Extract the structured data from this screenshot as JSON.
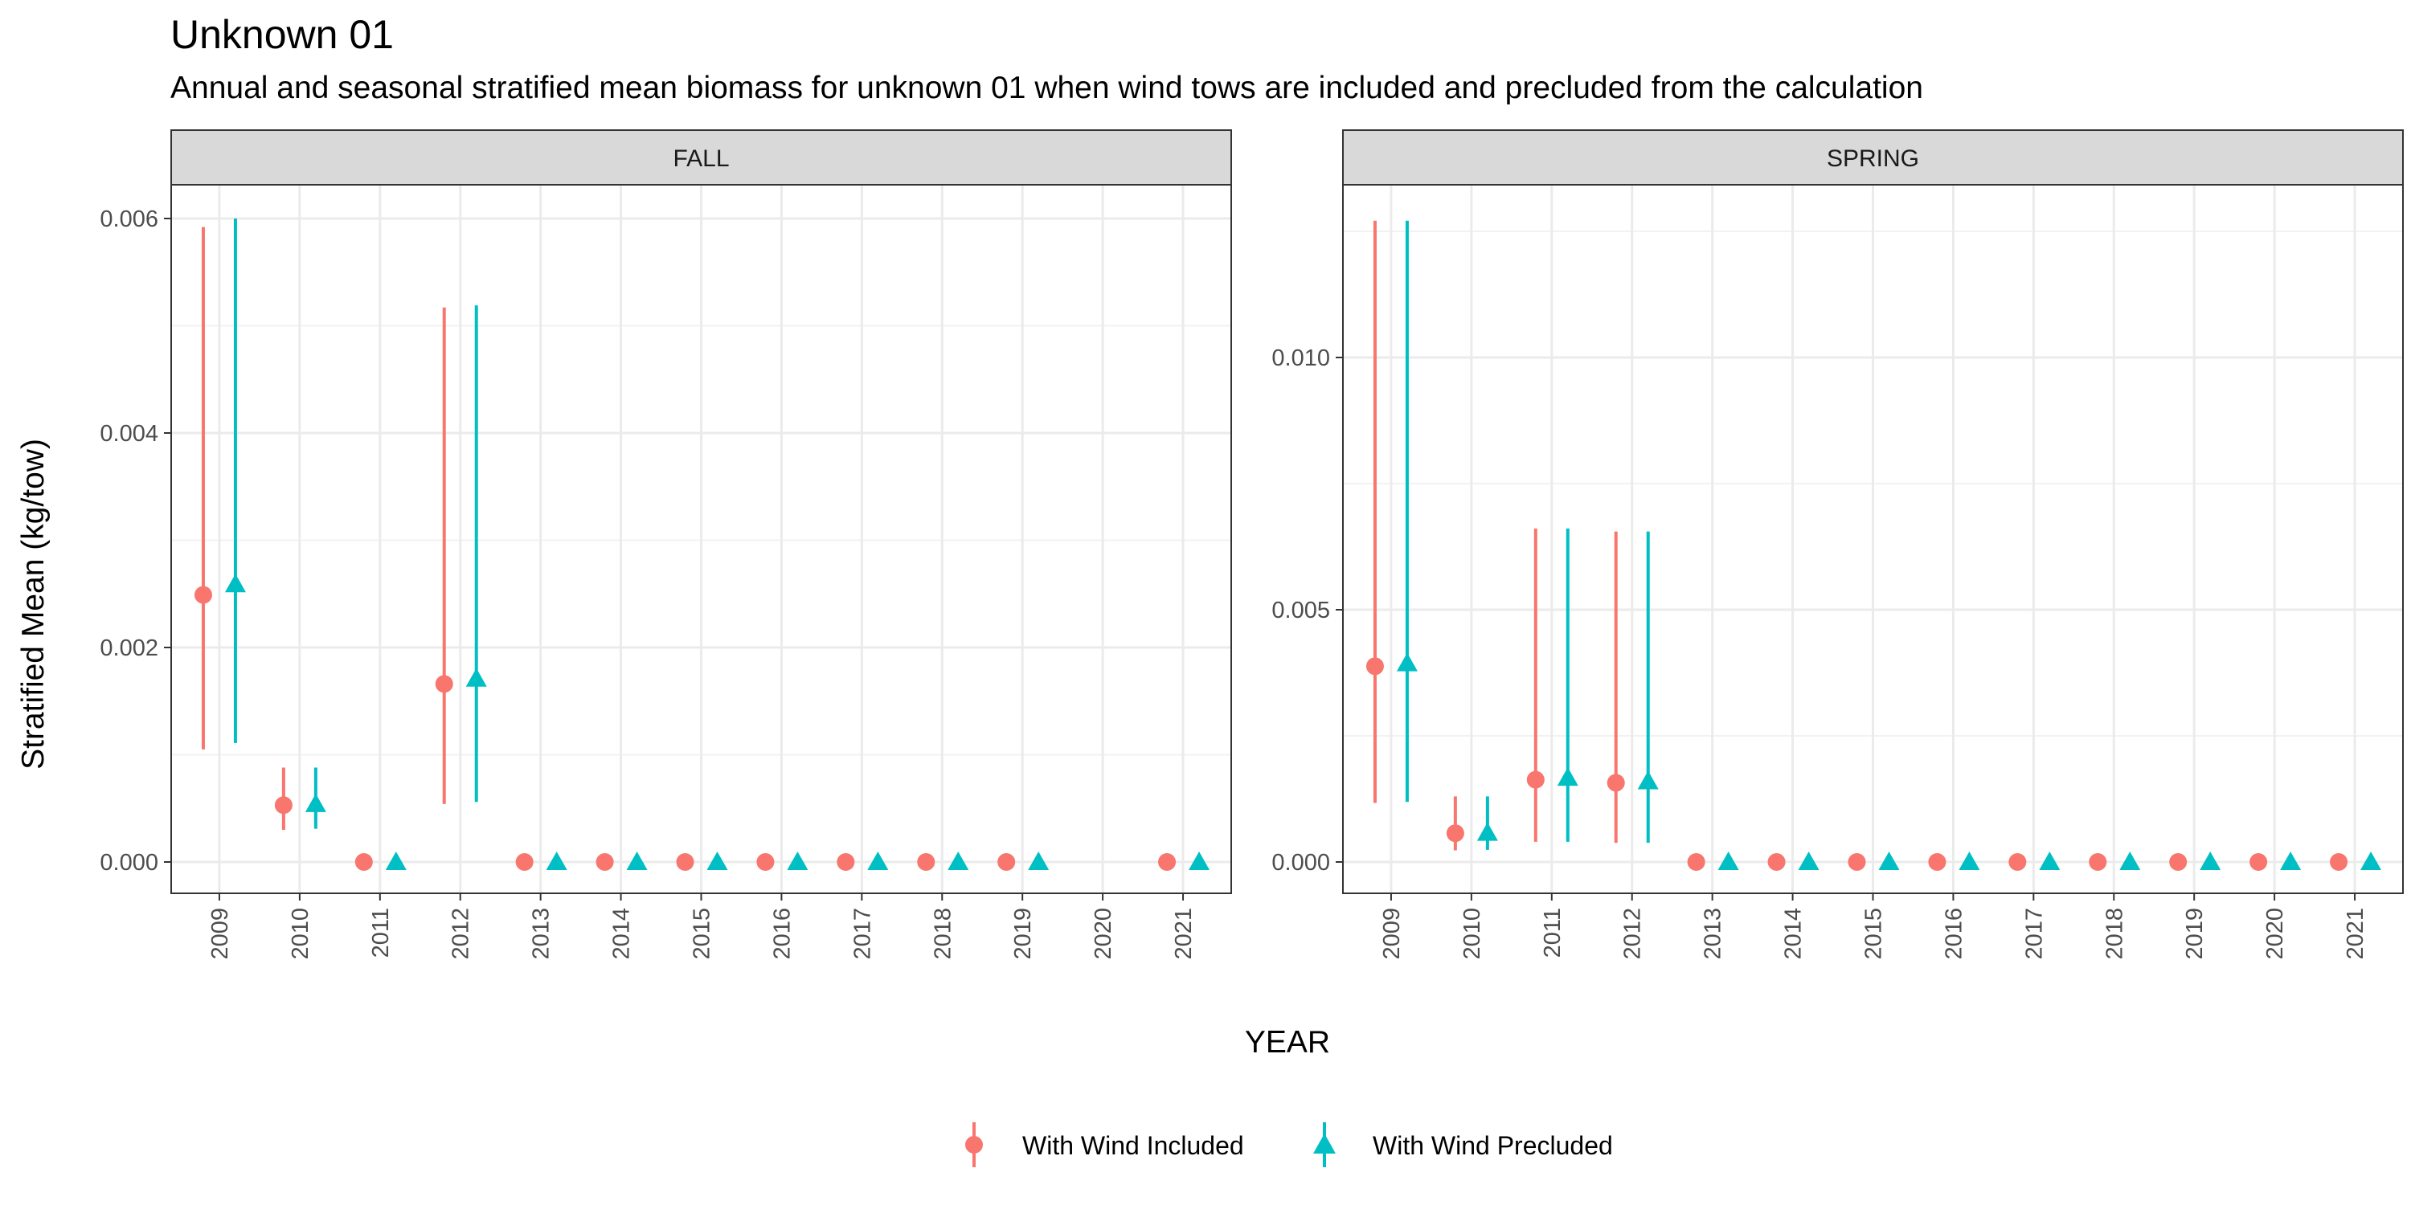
{
  "title": "Unknown 01",
  "subtitle": "Annual and seasonal stratified mean biomass for unknown 01 when wind tows are included and precluded from the calculation",
  "chart_data": {
    "type": "scatter",
    "xlabel": "YEAR",
    "ylabel": "Stratified Mean (kg/tow)",
    "categories": [
      "2009",
      "2010",
      "2011",
      "2012",
      "2013",
      "2014",
      "2015",
      "2016",
      "2017",
      "2018",
      "2019",
      "2020",
      "2021"
    ],
    "legend": {
      "placement": "bottom",
      "entries": [
        "With Wind Included",
        "With Wind Precluded"
      ]
    },
    "colors": {
      "included": "#F8766D",
      "precluded": "#00BFC4"
    },
    "grid": true,
    "panels": [
      {
        "label": "FALL",
        "ylim": [
          -0.0003,
          0.006
        ],
        "yticks": [
          0.0,
          0.002,
          0.004,
          0.006
        ],
        "ytick_labels": [
          "0.000",
          "0.002",
          "0.004",
          "0.006"
        ],
        "series": [
          {
            "name": "With Wind Included",
            "points": [
              {
                "year": "2009",
                "mean": 0.00249,
                "lower": 0.00105,
                "upper": 0.00592
              },
              {
                "year": "2010",
                "mean": 0.00053,
                "lower": 0.0003,
                "upper": 0.00088
              },
              {
                "year": "2011",
                "mean": 0.0,
                "lower": 0.0,
                "upper": 0.0
              },
              {
                "year": "2012",
                "mean": 0.00166,
                "lower": 0.00054,
                "upper": 0.00517
              },
              {
                "year": "2013",
                "mean": 0.0,
                "lower": 0.0,
                "upper": 0.0
              },
              {
                "year": "2014",
                "mean": 0.0,
                "lower": 0.0,
                "upper": 0.0
              },
              {
                "year": "2015",
                "mean": 0.0,
                "lower": 0.0,
                "upper": 0.0
              },
              {
                "year": "2016",
                "mean": 0.0,
                "lower": 0.0,
                "upper": 0.0
              },
              {
                "year": "2017",
                "mean": 0.0,
                "lower": 0.0,
                "upper": 0.0
              },
              {
                "year": "2018",
                "mean": 0.0,
                "lower": 0.0,
                "upper": 0.0
              },
              {
                "year": "2019",
                "mean": 0.0,
                "lower": 0.0,
                "upper": 0.0
              },
              {
                "year": "2021",
                "mean": 0.0,
                "lower": 0.0,
                "upper": 0.0
              }
            ]
          },
          {
            "name": "With Wind Precluded",
            "points": [
              {
                "year": "2009",
                "mean": 0.00259,
                "lower": 0.00111,
                "upper": 0.006
              },
              {
                "year": "2010",
                "mean": 0.00054,
                "lower": 0.00031,
                "upper": 0.00088
              },
              {
                "year": "2011",
                "mean": 0.0,
                "lower": 0.0,
                "upper": 0.0
              },
              {
                "year": "2012",
                "mean": 0.00171,
                "lower": 0.00056,
                "upper": 0.00519
              },
              {
                "year": "2013",
                "mean": 0.0,
                "lower": 0.0,
                "upper": 0.0
              },
              {
                "year": "2014",
                "mean": 0.0,
                "lower": 0.0,
                "upper": 0.0
              },
              {
                "year": "2015",
                "mean": 0.0,
                "lower": 0.0,
                "upper": 0.0
              },
              {
                "year": "2016",
                "mean": 0.0,
                "lower": 0.0,
                "upper": 0.0
              },
              {
                "year": "2017",
                "mean": 0.0,
                "lower": 0.0,
                "upper": 0.0
              },
              {
                "year": "2018",
                "mean": 0.0,
                "lower": 0.0,
                "upper": 0.0
              },
              {
                "year": "2019",
                "mean": 0.0,
                "lower": 0.0,
                "upper": 0.0
              },
              {
                "year": "2021",
                "mean": 0.0,
                "lower": 0.0,
                "upper": 0.0
              }
            ]
          }
        ]
      },
      {
        "label": "SPRING",
        "ylim": [
          -0.00065,
          0.0127
        ],
        "yticks": [
          0.0,
          0.005,
          0.01
        ],
        "ytick_labels": [
          "0.000",
          "0.005",
          "0.010"
        ],
        "series": [
          {
            "name": "With Wind Included",
            "points": [
              {
                "year": "2009",
                "mean": 0.00388,
                "lower": 0.00117,
                "upper": 0.01271
              },
              {
                "year": "2010",
                "mean": 0.00057,
                "lower": 0.00023,
                "upper": 0.0013
              },
              {
                "year": "2011",
                "mean": 0.00163,
                "lower": 0.0004,
                "upper": 0.00661
              },
              {
                "year": "2012",
                "mean": 0.00157,
                "lower": 0.00038,
                "upper": 0.00655
              },
              {
                "year": "2013",
                "mean": 0.0,
                "lower": 0.0,
                "upper": 0.0
              },
              {
                "year": "2014",
                "mean": 0.0,
                "lower": 0.0,
                "upper": 0.0
              },
              {
                "year": "2015",
                "mean": 0.0,
                "lower": 0.0,
                "upper": 0.0
              },
              {
                "year": "2016",
                "mean": 0.0,
                "lower": 0.0,
                "upper": 0.0
              },
              {
                "year": "2017",
                "mean": 0.0,
                "lower": 0.0,
                "upper": 0.0
              },
              {
                "year": "2018",
                "mean": 0.0,
                "lower": 0.0,
                "upper": 0.0
              },
              {
                "year": "2019",
                "mean": 0.0,
                "lower": 0.0,
                "upper": 0.0
              },
              {
                "year": "2020",
                "mean": 0.0,
                "lower": 0.0,
                "upper": 0.0
              },
              {
                "year": "2021",
                "mean": 0.0,
                "lower": 0.0,
                "upper": 0.0
              }
            ]
          },
          {
            "name": "With Wind Precluded",
            "points": [
              {
                "year": "2009",
                "mean": 0.00394,
                "lower": 0.00119,
                "upper": 0.01271
              },
              {
                "year": "2010",
                "mean": 0.00058,
                "lower": 0.00024,
                "upper": 0.0013
              },
              {
                "year": "2011",
                "mean": 0.00167,
                "lower": 0.0004,
                "upper": 0.00661
              },
              {
                "year": "2012",
                "mean": 0.0016,
                "lower": 0.00038,
                "upper": 0.00655
              },
              {
                "year": "2013",
                "mean": 0.0,
                "lower": 0.0,
                "upper": 0.0
              },
              {
                "year": "2014",
                "mean": 0.0,
                "lower": 0.0,
                "upper": 0.0
              },
              {
                "year": "2015",
                "mean": 0.0,
                "lower": 0.0,
                "upper": 0.0
              },
              {
                "year": "2016",
                "mean": 0.0,
                "lower": 0.0,
                "upper": 0.0
              },
              {
                "year": "2017",
                "mean": 0.0,
                "lower": 0.0,
                "upper": 0.0
              },
              {
                "year": "2018",
                "mean": 0.0,
                "lower": 0.0,
                "upper": 0.0
              },
              {
                "year": "2019",
                "mean": 0.0,
                "lower": 0.0,
                "upper": 0.0
              },
              {
                "year": "2020",
                "mean": 0.0,
                "lower": 0.0,
                "upper": 0.0
              },
              {
                "year": "2021",
                "mean": 0.0,
                "lower": 0.0,
                "upper": 0.0
              }
            ]
          }
        ]
      }
    ]
  }
}
